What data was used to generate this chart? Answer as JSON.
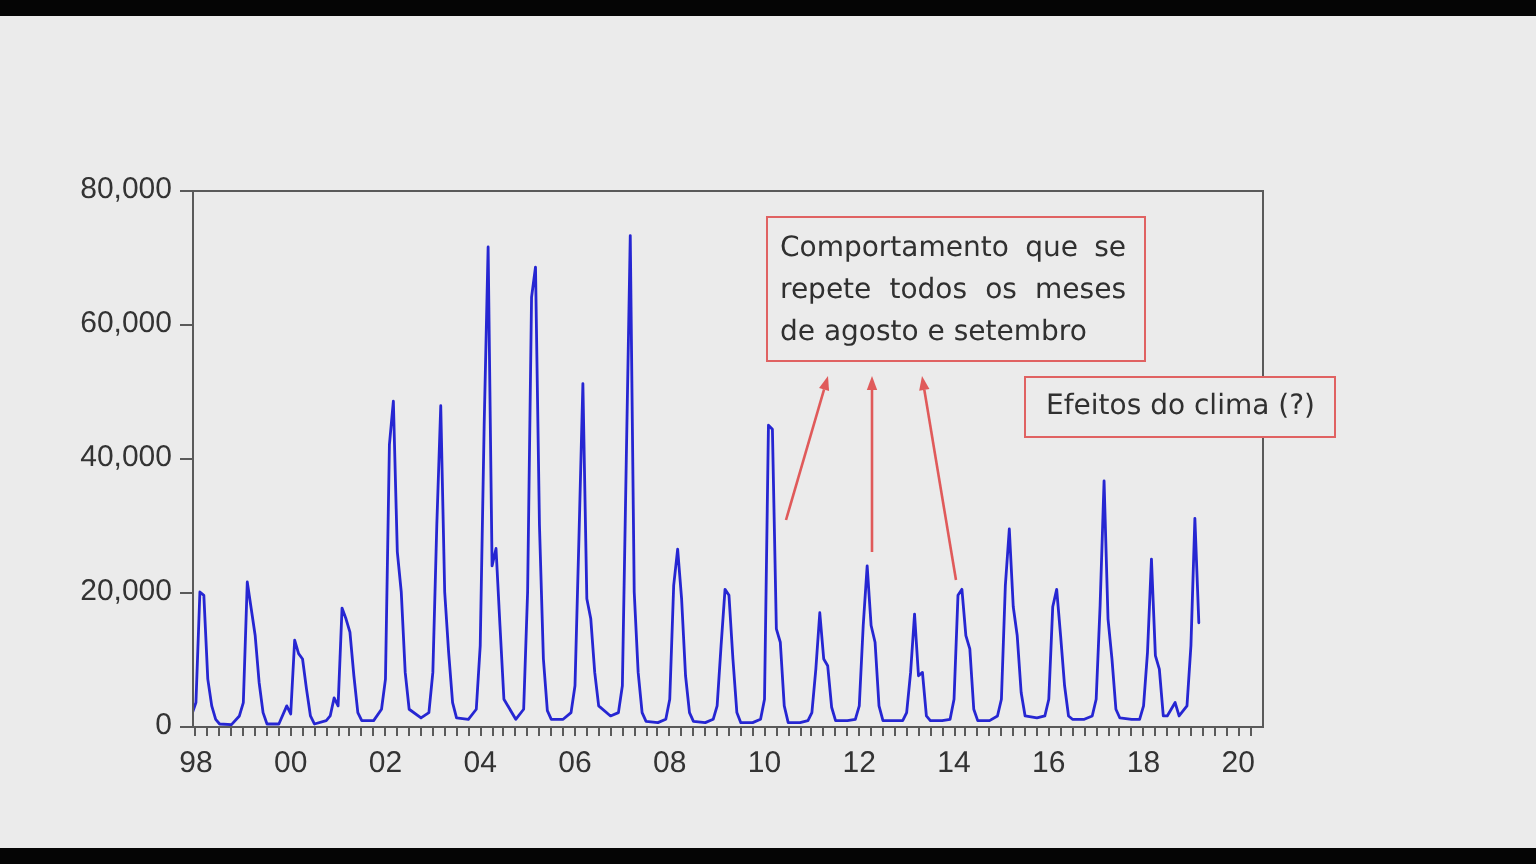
{
  "chart_data": {
    "type": "line",
    "annotations": [
      "Comportamento que se repete todos os meses de agosto e setembro",
      "Efeitos do clima (?)"
    ],
    "xlim": [
      "1998-06",
      "2021-01"
    ],
    "xticks": [
      {
        "value": "1998-07",
        "label": "98"
      },
      {
        "value": "1998-10",
        "label": null
      },
      {
        "value": "1999-01",
        "label": null
      },
      {
        "value": "1999-04",
        "label": null
      },
      {
        "value": "1999-07",
        "label": null
      },
      {
        "value": "1999-10",
        "label": null
      },
      {
        "value": "2000-01",
        "label": null
      },
      {
        "value": "2000-04",
        "label": null
      },
      {
        "value": "2000-07",
        "label": "00"
      },
      {
        "value": "2000-10",
        "label": null
      },
      {
        "value": "2001-01",
        "label": null
      },
      {
        "value": "2001-04",
        "label": null
      },
      {
        "value": "2001-07",
        "label": null
      },
      {
        "value": "2001-10",
        "label": null
      },
      {
        "value": "2002-01",
        "label": null
      },
      {
        "value": "2002-04",
        "label": null
      },
      {
        "value": "2002-07",
        "label": "02"
      },
      {
        "value": "2002-10",
        "label": null
      },
      {
        "value": "2003-01",
        "label": null
      },
      {
        "value": "2003-04",
        "label": null
      },
      {
        "value": "2003-07",
        "label": null
      },
      {
        "value": "2003-10",
        "label": null
      },
      {
        "value": "2004-01",
        "label": null
      },
      {
        "value": "2004-04",
        "label": null
      },
      {
        "value": "2004-07",
        "label": "04"
      },
      {
        "value": "2004-10",
        "label": null
      },
      {
        "value": "2005-01",
        "label": null
      },
      {
        "value": "2005-04",
        "label": null
      },
      {
        "value": "2005-07",
        "label": null
      },
      {
        "value": "2005-10",
        "label": null
      },
      {
        "value": "2006-01",
        "label": null
      },
      {
        "value": "2006-04",
        "label": null
      },
      {
        "value": "2006-07",
        "label": "06"
      },
      {
        "value": "2006-10",
        "label": null
      },
      {
        "value": "2007-01",
        "label": null
      },
      {
        "value": "2007-04",
        "label": null
      },
      {
        "value": "2007-07",
        "label": null
      },
      {
        "value": "2007-10",
        "label": null
      },
      {
        "value": "2008-01",
        "label": null
      },
      {
        "value": "2008-04",
        "label": null
      },
      {
        "value": "2008-07",
        "label": "08"
      },
      {
        "value": "2008-10",
        "label": null
      },
      {
        "value": "2009-01",
        "label": null
      },
      {
        "value": "2009-04",
        "label": null
      },
      {
        "value": "2009-07",
        "label": null
      },
      {
        "value": "2009-10",
        "label": null
      },
      {
        "value": "2010-01",
        "label": null
      },
      {
        "value": "2010-04",
        "label": null
      },
      {
        "value": "2010-07",
        "label": "10"
      },
      {
        "value": "2010-10",
        "label": null
      },
      {
        "value": "2011-01",
        "label": null
      },
      {
        "value": "2011-04",
        "label": null
      },
      {
        "value": "2011-07",
        "label": null
      },
      {
        "value": "2011-10",
        "label": null
      },
      {
        "value": "2012-01",
        "label": null
      },
      {
        "value": "2012-04",
        "label": null
      },
      {
        "value": "2012-07",
        "label": "12"
      },
      {
        "value": "2012-10",
        "label": null
      },
      {
        "value": "2013-01",
        "label": null
      },
      {
        "value": "2013-04",
        "label": null
      },
      {
        "value": "2013-07",
        "label": null
      },
      {
        "value": "2013-10",
        "label": null
      },
      {
        "value": "2014-01",
        "label": null
      },
      {
        "value": "2014-04",
        "label": null
      },
      {
        "value": "2014-07",
        "label": "14"
      },
      {
        "value": "2014-10",
        "label": null
      },
      {
        "value": "2015-01",
        "label": null
      },
      {
        "value": "2015-04",
        "label": null
      },
      {
        "value": "2015-07",
        "label": null
      },
      {
        "value": "2015-10",
        "label": null
      },
      {
        "value": "2016-01",
        "label": null
      },
      {
        "value": "2016-04",
        "label": null
      },
      {
        "value": "2016-07",
        "label": "16"
      },
      {
        "value": "2016-10",
        "label": null
      },
      {
        "value": "2017-01",
        "label": null
      },
      {
        "value": "2017-04",
        "label": null
      },
      {
        "value": "2017-07",
        "label": null
      },
      {
        "value": "2017-10",
        "label": null
      },
      {
        "value": "2018-01",
        "label": null
      },
      {
        "value": "2018-04",
        "label": null
      },
      {
        "value": "2018-07",
        "label": "18"
      },
      {
        "value": "2018-10",
        "label": null
      },
      {
        "value": "2019-01",
        "label": null
      },
      {
        "value": "2019-04",
        "label": null
      },
      {
        "value": "2019-07",
        "label": null
      },
      {
        "value": "2019-10",
        "label": null
      },
      {
        "value": "2020-01",
        "label": null
      },
      {
        "value": "2020-04",
        "label": null
      },
      {
        "value": "2020-07",
        "label": "20"
      },
      {
        "value": "2020-10",
        "label": null
      }
    ],
    "ylim": [
      0,
      80000
    ],
    "yticks": [
      0,
      {
        "value": 20000,
        "label": "20,000"
      },
      {
        "value": 40000,
        "label": "40,000"
      },
      {
        "value": 60000,
        "label": "60,000"
      },
      {
        "value": 80000,
        "label": "80,000"
      }
    ],
    "series": [
      {
        "color": "#2626d2",
        "x": [
          "1998-06",
          "1998-07",
          "1998-08",
          "1998-09",
          "1998-10",
          "1998-11",
          "1998-12",
          "1999-01",
          "1999-04",
          "1999-06",
          "1999-07",
          "1999-08",
          "1999-09",
          "1999-10",
          "1999-11",
          "1999-12",
          "2000-01",
          "2000-04",
          "2000-06",
          "2000-07",
          "2000-08",
          "2000-09",
          "2000-10",
          "2000-11",
          "2000-12",
          "2001-01",
          "2001-04",
          "2001-05",
          "2001-06",
          "2001-07",
          "2001-08",
          "2001-09",
          "2001-10",
          "2001-11",
          "2001-12",
          "2002-01",
          "2002-04",
          "2002-06",
          "2002-07",
          "2002-08",
          "2002-09",
          "2002-10",
          "2002-11",
          "2002-12",
          "2003-01",
          "2003-04",
          "2003-06",
          "2003-07",
          "2003-08",
          "2003-09",
          "2003-10",
          "2003-11",
          "2003-12",
          "2004-01",
          "2004-04",
          "2004-06",
          "2004-07",
          "2004-08",
          "2004-09",
          "2004-10",
          "2004-11",
          "2004-12",
          "2005-01",
          "2005-04",
          "2005-06",
          "2005-07",
          "2005-08",
          "2005-09",
          "2005-10",
          "2005-11",
          "2005-12",
          "2006-01",
          "2006-04",
          "2006-06",
          "2006-07",
          "2006-08",
          "2006-09",
          "2006-10",
          "2006-11",
          "2006-12",
          "2007-01",
          "2007-04",
          "2007-06",
          "2007-07",
          "2007-08",
          "2007-09",
          "2007-10",
          "2007-11",
          "2007-12",
          "2008-01",
          "2008-04",
          "2008-06",
          "2008-07",
          "2008-08",
          "2008-09",
          "2008-10",
          "2008-11",
          "2008-12",
          "2009-01",
          "2009-04",
          "2009-06",
          "2009-07",
          "2009-08",
          "2009-09",
          "2009-10",
          "2009-11",
          "2009-12",
          "2010-01",
          "2010-04",
          "2010-06",
          "2010-07",
          "2010-08",
          "2010-09",
          "2010-10",
          "2010-11",
          "2010-12",
          "2011-01",
          "2011-04",
          "2011-06",
          "2011-07",
          "2011-08",
          "2011-09",
          "2011-10",
          "2011-11",
          "2011-12",
          "2012-01",
          "2012-04",
          "2012-06",
          "2012-07",
          "2012-08",
          "2012-09",
          "2012-10",
          "2012-11",
          "2012-12",
          "2013-01",
          "2013-04",
          "2013-06",
          "2013-07",
          "2013-08",
          "2013-09",
          "2013-10",
          "2013-11",
          "2013-12",
          "2014-01",
          "2014-04",
          "2014-06",
          "2014-07",
          "2014-08",
          "2014-09",
          "2014-10",
          "2014-11",
          "2014-12",
          "2015-01",
          "2015-04",
          "2015-06",
          "2015-07",
          "2015-08",
          "2015-09",
          "2015-10",
          "2015-11",
          "2015-12",
          "2016-01",
          "2016-04",
          "2016-06",
          "2016-07",
          "2016-08",
          "2016-09",
          "2016-10",
          "2016-11",
          "2016-12",
          "2017-01",
          "2017-04",
          "2017-06",
          "2017-07",
          "2017-08",
          "2017-09",
          "2017-10",
          "2017-11",
          "2017-12",
          "2018-01",
          "2018-04",
          "2018-06",
          "2018-07",
          "2018-08",
          "2018-09",
          "2018-10",
          "2018-11",
          "2018-12",
          "2019-01",
          "2019-03",
          "2019-04",
          "2019-06",
          "2019-07",
          "2019-08",
          "2019-09"
        ],
        "values": [
          1800,
          3500,
          20000,
          19500,
          7000,
          3000,
          1000,
          300,
          200,
          1500,
          3500,
          21500,
          17500,
          13500,
          6500,
          2000,
          300,
          300,
          3000,
          1800,
          12800,
          10800,
          10000,
          5500,
          1500,
          300,
          800,
          1500,
          4200,
          3000,
          17600,
          16000,
          14000,
          7500,
          2000,
          800,
          800,
          2500,
          7000,
          42000,
          48500,
          26000,
          20000,
          8000,
          2500,
          1200,
          2000,
          8000,
          30000,
          47800,
          20000,
          11000,
          3500,
          1200,
          1000,
          2500,
          12000,
          45000,
          71500,
          23900,
          26500,
          15000,
          4000,
          1000,
          2500,
          20000,
          64000,
          68500,
          30000,
          10000,
          2300,
          1000,
          1000,
          2000,
          6000,
          28000,
          51100,
          19000,
          16000,
          8000,
          3000,
          1500,
          2000,
          6000,
          40000,
          73200,
          20000,
          8000,
          2000,
          700,
          500,
          1000,
          4000,
          21000,
          26400,
          19000,
          7500,
          2000,
          700,
          500,
          1000,
          3000,
          12000,
          20400,
          19500,
          10000,
          2000,
          500,
          500,
          1000,
          4000,
          44900,
          44300,
          14500,
          12500,
          3000,
          500,
          500,
          800,
          2000,
          8500,
          16900,
          10000,
          9000,
          2800,
          800,
          800,
          1000,
          3000,
          15000,
          23900,
          15000,
          12500,
          3000,
          800,
          800,
          800,
          2000,
          8000,
          16700,
          7500,
          8000,
          1500,
          800,
          800,
          1000,
          4000,
          19500,
          20400,
          13500,
          11500,
          2500,
          800,
          800,
          1500,
          4000,
          21000,
          29400,
          17800,
          13500,
          5000,
          1500,
          1200,
          1500,
          4000,
          17800,
          20400,
          13400,
          6000,
          1500,
          1000,
          1000,
          1500,
          4000,
          18000,
          36600,
          16000,
          10000,
          2500,
          1200,
          1000,
          1000,
          3000,
          11000,
          24900,
          10500,
          8500,
          1500,
          1500,
          3500,
          1500,
          3000,
          12000,
          31000,
          15400
        ]
      }
    ]
  }
}
